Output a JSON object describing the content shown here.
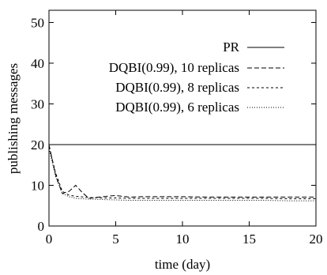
{
  "chart_data": {
    "type": "line",
    "xlabel": "time (day)",
    "ylabel": "publishing messages",
    "xlim": [
      0,
      20
    ],
    "ylim": [
      0,
      53
    ],
    "x_ticks": [
      0,
      5,
      10,
      15,
      20
    ],
    "y_ticks": [
      0,
      10,
      20,
      30,
      40,
      50
    ],
    "grid": false,
    "legend_position": "top-right",
    "series": [
      {
        "name": "PR",
        "style": "solid",
        "x": [
          0,
          20
        ],
        "y": [
          20,
          20
        ]
      },
      {
        "name": "DQBI(0.99), 10 replicas",
        "style": "dashed",
        "x": [
          0,
          0.5,
          1,
          1.5,
          2,
          2.5,
          3,
          4,
          5,
          6,
          7,
          8,
          10,
          12,
          14,
          16,
          18,
          20
        ],
        "y": [
          20,
          12.5,
          8,
          8.5,
          10,
          8.2,
          6.8,
          7.2,
          7.5,
          7.1,
          7.2,
          7.2,
          7.2,
          7.1,
          7.1,
          7.1,
          7.1,
          7.1
        ]
      },
      {
        "name": "DQBI(0.99), 8 replicas",
        "style": "dotted",
        "x": [
          0,
          0.5,
          1,
          1.5,
          2,
          3,
          4,
          5,
          6,
          8,
          10,
          12,
          14,
          16,
          18,
          20
        ],
        "y": [
          19.5,
          13,
          8.5,
          7.6,
          7.3,
          7.0,
          6.9,
          6.9,
          6.8,
          6.8,
          6.8,
          6.8,
          6.8,
          6.8,
          6.7,
          6.7
        ]
      },
      {
        "name": "DQBI(0.99), 6 replicas",
        "style": "fine-dotted",
        "x": [
          0,
          0.5,
          1,
          1.5,
          2,
          3,
          4,
          5,
          6,
          8,
          10,
          12,
          14,
          16,
          18,
          20
        ],
        "y": [
          19,
          12,
          8,
          7.2,
          6.8,
          6.6,
          6.5,
          6.4,
          6.3,
          6.3,
          6.3,
          6.3,
          6.3,
          6.3,
          6.2,
          6.2
        ]
      }
    ]
  }
}
